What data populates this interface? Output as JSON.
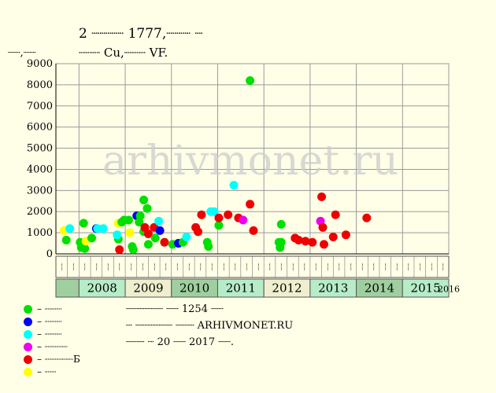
{
  "title": "2 ┈┈┈┈ 1777,┈┈┈ ┈",
  "subtitle": "┈┈┈ Cu,┈┈┈ VF.",
  "y_unit": "┈┈,┈┈",
  "watermark": "arhivmonet.ru",
  "info": [
    "┈┈┈┈┈┈ ┈┈ 1254 ┈┈",
    "┈ ┈┈┈┈┈┈ ┈┈┈ ARHIVMONET.RU",
    "┈┈┈ ┈ 20 ┈┈ 2017 ┈┈."
  ],
  "legend": [
    {
      "color": "#00e000",
      "label": "– ┈┈┈"
    },
    {
      "color": "#0000ee",
      "label": "– ┈┈┈"
    },
    {
      "color": "#00ffff",
      "label": "– ┈┈┈"
    },
    {
      "color": "#ee00ee",
      "label": "– ┈┈┈┈"
    },
    {
      "color": "#ee0000",
      "label": "– ┈┈┈┈┈Б"
    },
    {
      "color": "#ffff00",
      "label": "– ┈┈"
    }
  ],
  "chart_data": {
    "type": "scatter",
    "ylim": [
      0,
      9000
    ],
    "yticks": [
      0,
      1000,
      2000,
      3000,
      4000,
      5000,
      6000,
      7000,
      8000,
      9000
    ],
    "quarters": [
      "┈┈",
      "┈┈",
      "┈┈",
      "┈┈"
    ],
    "years": [
      "2008",
      "2009",
      "2010",
      "2011",
      "2012",
      "2013",
      "2014",
      "2015",
      "2016"
    ],
    "grid": true,
    "points": [
      {
        "x": 0.2,
        "y": 1100,
        "c": 5
      },
      {
        "x": 0.4,
        "y": 650,
        "c": 0
      },
      {
        "x": 0.7,
        "y": 1200,
        "c": 2
      },
      {
        "x": 1.6,
        "y": 550,
        "c": 0
      },
      {
        "x": 1.7,
        "y": 300,
        "c": 0
      },
      {
        "x": 2.0,
        "y": 250,
        "c": 0
      },
      {
        "x": 1.9,
        "y": 1450,
        "c": 0
      },
      {
        "x": 2.1,
        "y": 600,
        "c": 5
      },
      {
        "x": 2.6,
        "y": 750,
        "c": 0
      },
      {
        "x": 3.0,
        "y": 1200,
        "c": 1
      },
      {
        "x": 3.1,
        "y": 1200,
        "c": 2
      },
      {
        "x": 3.6,
        "y": 1200,
        "c": 2
      },
      {
        "x": 4.9,
        "y": 700,
        "c": 0
      },
      {
        "x": 4.8,
        "y": 900,
        "c": 2
      },
      {
        "x": 4.9,
        "y": 1450,
        "c": 5
      },
      {
        "x": 5.0,
        "y": 200,
        "c": 4
      },
      {
        "x": 5.2,
        "y": 1500,
        "c": 0
      },
      {
        "x": 5.4,
        "y": 1600,
        "c": 0
      },
      {
        "x": 5.8,
        "y": 1600,
        "c": 0
      },
      {
        "x": 5.9,
        "y": 1000,
        "c": 5
      },
      {
        "x": 6.1,
        "y": 350,
        "c": 0
      },
      {
        "x": 6.2,
        "y": 200,
        "c": 0
      },
      {
        "x": 6.5,
        "y": 1800,
        "c": 1
      },
      {
        "x": 6.7,
        "y": 1500,
        "c": 0
      },
      {
        "x": 6.8,
        "y": 1800,
        "c": 0
      },
      {
        "x": 7.1,
        "y": 2550,
        "c": 0
      },
      {
        "x": 7.1,
        "y": 1050,
        "c": 0
      },
      {
        "x": 7.2,
        "y": 1250,
        "c": 4
      },
      {
        "x": 7.4,
        "y": 2150,
        "c": 0
      },
      {
        "x": 7.5,
        "y": 950,
        "c": 4
      },
      {
        "x": 7.5,
        "y": 450,
        "c": 0
      },
      {
        "x": 8.0,
        "y": 1250,
        "c": 4
      },
      {
        "x": 8.1,
        "y": 750,
        "c": 0
      },
      {
        "x": 8.4,
        "y": 1550,
        "c": 2
      },
      {
        "x": 8.5,
        "y": 1100,
        "c": 1
      },
      {
        "x": 8.9,
        "y": 550,
        "c": 4
      },
      {
        "x": 9.6,
        "y": 450,
        "c": 0
      },
      {
        "x": 10.1,
        "y": 500,
        "c": 1
      },
      {
        "x": 10.5,
        "y": 550,
        "c": 0
      },
      {
        "x": 10.8,
        "y": 800,
        "c": 2
      },
      {
        "x": 11.6,
        "y": 1250,
        "c": 4
      },
      {
        "x": 11.8,
        "y": 1050,
        "c": 4
      },
      {
        "x": 12.1,
        "y": 1850,
        "c": 4
      },
      {
        "x": 12.6,
        "y": 550,
        "c": 0
      },
      {
        "x": 12.7,
        "y": 350,
        "c": 0
      },
      {
        "x": 12.9,
        "y": 2000,
        "c": 2
      },
      {
        "x": 13.2,
        "y": 2000,
        "c": 2
      },
      {
        "x": 13.6,
        "y": 1350,
        "c": 0
      },
      {
        "x": 13.6,
        "y": 1700,
        "c": 4
      },
      {
        "x": 14.4,
        "y": 1850,
        "c": 4
      },
      {
        "x": 14.9,
        "y": 3250,
        "c": 2
      },
      {
        "x": 15.3,
        "y": 1700,
        "c": 4
      },
      {
        "x": 15.7,
        "y": 1600,
        "c": 3
      },
      {
        "x": 16.3,
        "y": 2350,
        "c": 4
      },
      {
        "x": 16.3,
        "y": 8200,
        "c": 0
      },
      {
        "x": 16.6,
        "y": 1100,
        "c": 4
      },
      {
        "x": 18.8,
        "y": 550,
        "c": 0
      },
      {
        "x": 18.9,
        "y": 300,
        "c": 0
      },
      {
        "x": 19.0,
        "y": 550,
        "c": 0
      },
      {
        "x": 19.0,
        "y": 1400,
        "c": 0
      },
      {
        "x": 20.2,
        "y": 750,
        "c": 4
      },
      {
        "x": 20.5,
        "y": 650,
        "c": 4
      },
      {
        "x": 21.1,
        "y": 600,
        "c": 4
      },
      {
        "x": 21.7,
        "y": 550,
        "c": 4
      },
      {
        "x": 22.5,
        "y": 2700,
        "c": 4
      },
      {
        "x": 22.4,
        "y": 1550,
        "c": 3
      },
      {
        "x": 22.6,
        "y": 1250,
        "c": 4
      },
      {
        "x": 22.7,
        "y": 450,
        "c": 4
      },
      {
        "x": 23.5,
        "y": 800,
        "c": 4
      },
      {
        "x": 23.7,
        "y": 1850,
        "c": 4
      },
      {
        "x": 24.6,
        "y": 900,
        "c": 4
      },
      {
        "x": 26.4,
        "y": 1700,
        "c": 4
      }
    ]
  }
}
